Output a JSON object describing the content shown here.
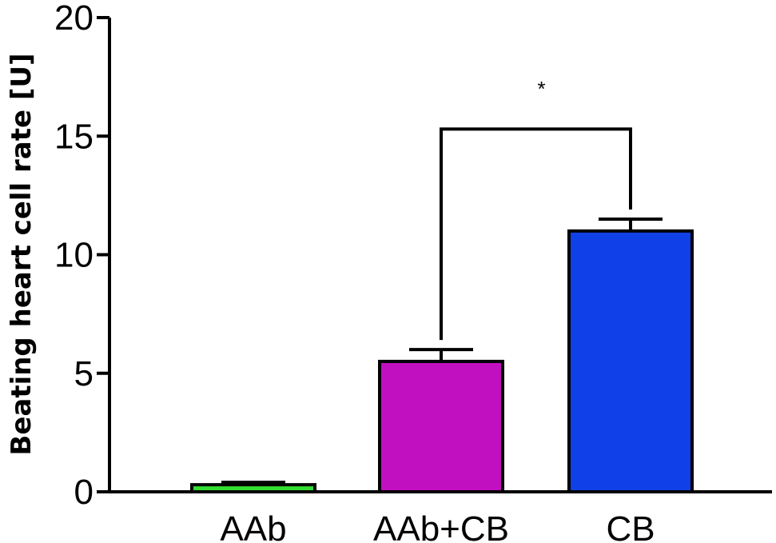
{
  "chart_data": {
    "type": "bar",
    "title": "",
    "xlabel": "",
    "ylabel": "Beating heart cell rate [U]",
    "ylim": [
      0,
      20
    ],
    "yticks": [
      0,
      5,
      10,
      15,
      20
    ],
    "ytick_labels": [
      "0",
      "5",
      "10",
      "15",
      "20"
    ],
    "categories": [
      "AAb",
      "AAb+CB",
      "CB"
    ],
    "values": [
      0.3,
      5.5,
      11.0
    ],
    "error_upper": [
      0.1,
      0.5,
      0.5
    ],
    "bar_colors": [
      "#33dd33",
      "#c010c0",
      "#1040e8"
    ],
    "grid": false,
    "legend": "none",
    "significance": [
      {
        "from": "AAb+CB",
        "to": "CB",
        "label": "*",
        "y": 15.3
      }
    ]
  }
}
